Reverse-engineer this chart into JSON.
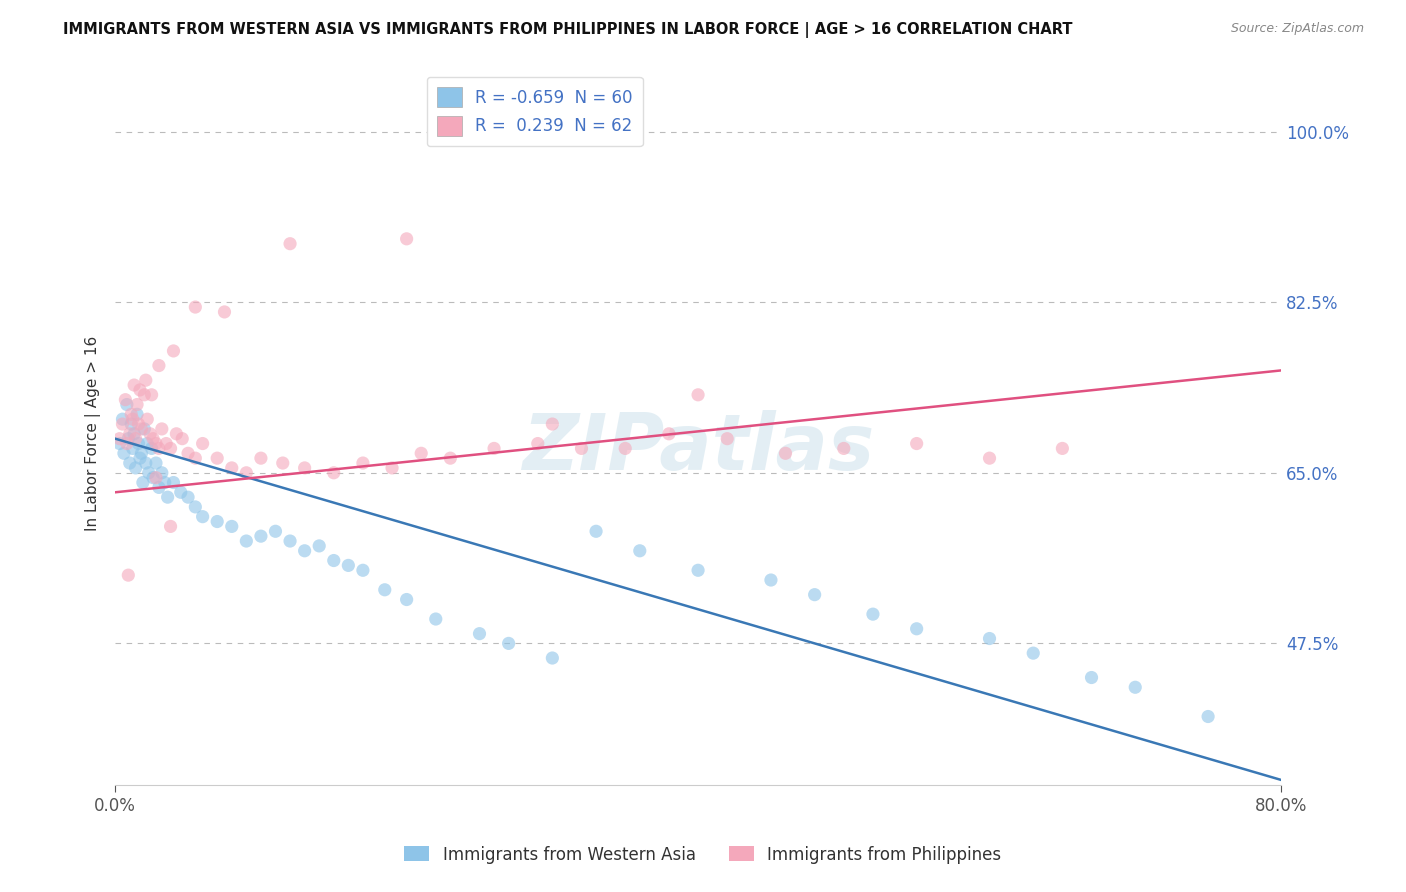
{
  "title": "IMMIGRANTS FROM WESTERN ASIA VS IMMIGRANTS FROM PHILIPPINES IN LABOR FORCE | AGE > 16 CORRELATION CHART",
  "source": "Source: ZipAtlas.com",
  "ylabel": "In Labor Force | Age > 16",
  "right_yticks": [
    47.5,
    65.0,
    82.5,
    100.0
  ],
  "right_ytick_labels": [
    "47.5%",
    "65.0%",
    "82.5%",
    "100.0%"
  ],
  "watermark": "ZIPatlas",
  "legend_label1": "Immigrants from Western Asia",
  "legend_label2": "Immigrants from Philippines",
  "color_blue": "#8ec4e8",
  "color_pink": "#f4a8bb",
  "color_blue_line": "#3a78b5",
  "color_pink_line": "#e05080",
  "xlim": [
    0.0,
    80.0
  ],
  "ylim": [
    33.0,
    105.0
  ],
  "blue_R": "-0.659",
  "blue_N": "60",
  "pink_R": "0.239",
  "pink_N": "62",
  "blue_line_y0": 68.5,
  "blue_line_y1": 33.5,
  "pink_line_y0": 63.0,
  "pink_line_y1": 75.5,
  "blue_scatter_x": [
    0.3,
    0.5,
    0.6,
    0.8,
    0.9,
    1.0,
    1.1,
    1.2,
    1.3,
    1.4,
    1.5,
    1.6,
    1.7,
    1.8,
    1.9,
    2.0,
    2.1,
    2.2,
    2.3,
    2.5,
    2.6,
    2.8,
    3.0,
    3.2,
    3.4,
    3.6,
    4.0,
    4.5,
    5.0,
    5.5,
    6.0,
    7.0,
    8.0,
    9.0,
    10.0,
    11.0,
    12.0,
    13.0,
    14.0,
    15.0,
    16.0,
    17.0,
    18.5,
    20.0,
    22.0,
    25.0,
    27.0,
    30.0,
    33.0,
    36.0,
    40.0,
    45.0,
    48.0,
    52.0,
    55.0,
    60.0,
    63.0,
    67.0,
    70.0,
    75.0
  ],
  "blue_scatter_y": [
    68.0,
    70.5,
    67.0,
    72.0,
    68.5,
    66.0,
    70.0,
    67.5,
    69.0,
    65.5,
    71.0,
    68.0,
    66.5,
    67.0,
    64.0,
    69.5,
    66.0,
    68.0,
    65.0,
    67.5,
    64.5,
    66.0,
    63.5,
    65.0,
    64.0,
    62.5,
    64.0,
    63.0,
    62.5,
    61.5,
    60.5,
    60.0,
    59.5,
    58.0,
    58.5,
    59.0,
    58.0,
    57.0,
    57.5,
    56.0,
    55.5,
    55.0,
    53.0,
    52.0,
    50.0,
    48.5,
    47.5,
    46.0,
    59.0,
    57.0,
    55.0,
    54.0,
    52.5,
    50.5,
    49.0,
    48.0,
    46.5,
    44.0,
    43.0,
    40.0
  ],
  "pink_scatter_x": [
    0.3,
    0.5,
    0.7,
    0.8,
    1.0,
    1.1,
    1.2,
    1.4,
    1.5,
    1.6,
    1.8,
    2.0,
    2.2,
    2.4,
    2.6,
    2.8,
    3.0,
    3.2,
    3.5,
    3.8,
    4.2,
    4.6,
    5.0,
    5.5,
    6.0,
    7.0,
    8.0,
    9.0,
    10.0,
    11.5,
    13.0,
    15.0,
    17.0,
    19.0,
    21.0,
    23.0,
    26.0,
    29.0,
    32.0,
    35.0,
    38.0,
    42.0,
    46.0,
    50.0,
    55.0,
    60.0,
    65.0,
    1.3,
    1.7,
    2.1,
    2.5,
    3.0,
    4.0,
    5.5,
    7.5,
    12.0,
    20.0,
    30.0,
    40.0,
    0.9,
    2.8,
    3.8
  ],
  "pink_scatter_y": [
    68.5,
    70.0,
    72.5,
    68.0,
    69.0,
    71.0,
    70.5,
    68.5,
    72.0,
    70.0,
    69.5,
    73.0,
    70.5,
    69.0,
    68.5,
    68.0,
    67.5,
    69.5,
    68.0,
    67.5,
    69.0,
    68.5,
    67.0,
    66.5,
    68.0,
    66.5,
    65.5,
    65.0,
    66.5,
    66.0,
    65.5,
    65.0,
    66.0,
    65.5,
    67.0,
    66.5,
    67.5,
    68.0,
    67.5,
    67.5,
    69.0,
    68.5,
    67.0,
    67.5,
    68.0,
    66.5,
    67.5,
    74.0,
    73.5,
    74.5,
    73.0,
    76.0,
    77.5,
    82.0,
    81.5,
    88.5,
    89.0,
    70.0,
    73.0,
    54.5,
    64.5,
    59.5
  ]
}
